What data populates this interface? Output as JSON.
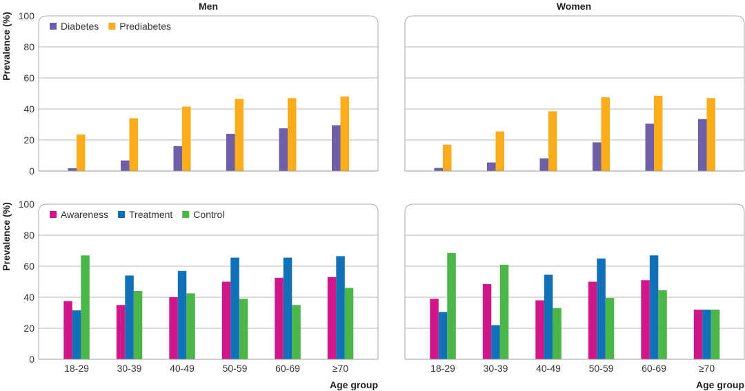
{
  "colors": {
    "Diabetes": "#6f5ea8",
    "Prediabetes": "#f9ad1a",
    "Awareness": "#d0178a",
    "Treatment": "#1070b8",
    "Control": "#4cb748"
  },
  "labels": {
    "men": "Men",
    "women": "Women",
    "ylabel": "Prevalence (%)",
    "xlabel": "Age group"
  },
  "chart_data": [
    {
      "type": "bar",
      "panel": "men-top",
      "title": "Men",
      "ylabel": "Prevalence (%)",
      "ylim": [
        0,
        100
      ],
      "yticks": [
        0,
        20,
        40,
        60,
        80,
        100
      ],
      "categories": [
        "18-29",
        "30-39",
        "40-49",
        "50-59",
        "60-69",
        "≥70"
      ],
      "legend": [
        "Diabetes",
        "Prediabetes"
      ],
      "series": [
        {
          "name": "Diabetes",
          "values": [
            1.8,
            6.8,
            16.0,
            24.0,
            27.5,
            29.5
          ]
        },
        {
          "name": "Prediabetes",
          "values": [
            23.5,
            34.0,
            41.5,
            46.5,
            47.0,
            48.0
          ]
        }
      ]
    },
    {
      "type": "bar",
      "panel": "women-top",
      "title": "Women",
      "ylim": [
        0,
        100
      ],
      "categories": [
        "18-29",
        "30-39",
        "40-49",
        "50-59",
        "60-69",
        "≥70"
      ],
      "series": [
        {
          "name": "Diabetes",
          "values": [
            2.0,
            5.5,
            8.2,
            18.5,
            30.5,
            33.5
          ]
        },
        {
          "name": "Prediabetes",
          "values": [
            17.0,
            25.5,
            38.5,
            47.5,
            48.5,
            47.0
          ]
        }
      ]
    },
    {
      "type": "bar",
      "panel": "men-bottom",
      "ylabel": "Prevalence (%)",
      "xlabel": "Age group",
      "ylim": [
        0,
        100
      ],
      "yticks": [
        0,
        20,
        40,
        60,
        80,
        100
      ],
      "categories": [
        "18-29",
        "30-39",
        "40-49",
        "50-59",
        "60-69",
        "≥70"
      ],
      "legend": [
        "Awareness",
        "Treatment",
        "Control"
      ],
      "series": [
        {
          "name": "Awareness",
          "values": [
            37.5,
            35.0,
            40.0,
            50.0,
            52.5,
            53.0
          ]
        },
        {
          "name": "Treatment",
          "values": [
            31.5,
            54.0,
            57.0,
            65.5,
            65.5,
            66.5
          ]
        },
        {
          "name": "Control",
          "values": [
            67.0,
            44.0,
            42.5,
            39.0,
            35.0,
            46.0
          ]
        }
      ]
    },
    {
      "type": "bar",
      "panel": "women-bottom",
      "xlabel": "Age group",
      "ylim": [
        0,
        100
      ],
      "categories": [
        "18-29",
        "30-39",
        "40-49",
        "50-59",
        "60-69",
        "≥70"
      ],
      "series": [
        {
          "name": "Awareness",
          "values": [
            39.0,
            48.5,
            38.0,
            50.0,
            51.0,
            32.0
          ]
        },
        {
          "name": "Treatment",
          "values": [
            30.5,
            22.0,
            54.5,
            65.0,
            67.0,
            32.0
          ]
        },
        {
          "name": "Control",
          "values": [
            68.5,
            61.0,
            33.0,
            39.5,
            44.5,
            32.0
          ]
        }
      ]
    }
  ]
}
